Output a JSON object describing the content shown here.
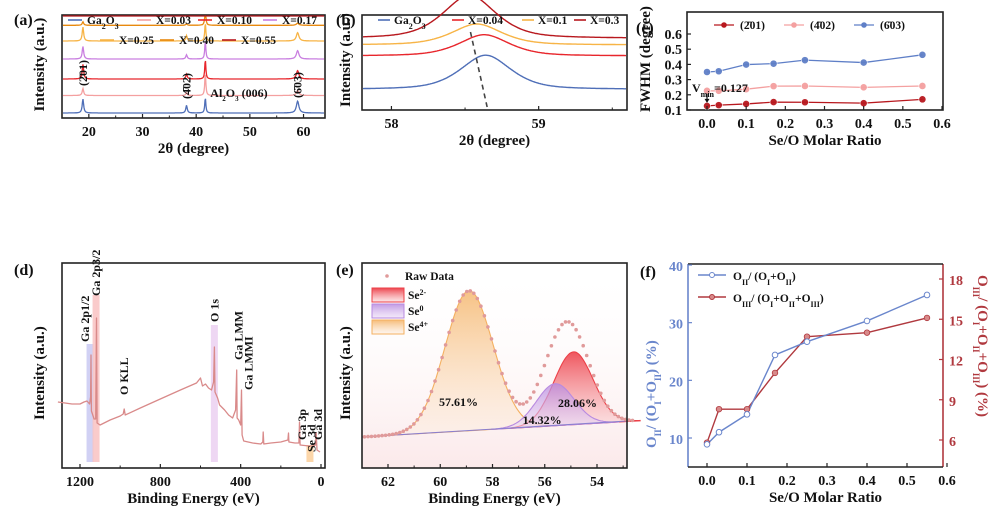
{
  "figure": {
    "panel_labels": [
      "(a)",
      "(b)",
      "(c)",
      "(d)",
      "(e)",
      "(f)"
    ]
  },
  "chart_data": [
    {
      "id": "a",
      "type": "line",
      "title": "",
      "xlabel": "2θ (degree)",
      "ylabel": "Intensity (a.u.)",
      "xlim": [
        15,
        64
      ],
      "xticks": [
        20,
        30,
        40,
        50,
        60
      ],
      "yticks": [],
      "legend_position": "top",
      "series": [
        {
          "name": "Ga₂O₃",
          "name_html": "Ga<tspan baseline-shift='sub' font-size='8'>2</tspan>O<tspan baseline-shift='sub' font-size='8'>3</tspan>",
          "color": "#4f6fb8",
          "offset": 0,
          "peaks": [
            [
              18.9,
              1.0
            ],
            [
              38.2,
              0.55
            ],
            [
              41.7,
              1.1
            ],
            [
              58.9,
              0.85
            ]
          ]
        },
        {
          "name": "X=0.03",
          "color": "#f4a0a0",
          "offset": 1,
          "peaks": [
            [
              18.9,
              0.5
            ],
            [
              38.2,
              0.2
            ],
            [
              41.7,
              1.6
            ],
            [
              58.9,
              0.35
            ]
          ]
        },
        {
          "name": "X=0.10",
          "color": "#e8262c",
          "offset": 2,
          "peaks": [
            [
              18.9,
              1.05
            ],
            [
              38.2,
              0.35
            ],
            [
              41.7,
              1.4
            ],
            [
              58.9,
              0.6
            ]
          ]
        },
        {
          "name": "X=0.17",
          "color": "#c97fe0",
          "offset": 3,
          "peaks": [
            [
              18.9,
              0.9
            ],
            [
              38.2,
              0.3
            ],
            [
              41.7,
              1.3
            ],
            [
              58.9,
              0.6
            ]
          ]
        },
        {
          "name": "X=0.25",
          "color": "#f7b446",
          "offset": 4,
          "peaks": [
            [
              18.9,
              1.0
            ],
            [
              38.2,
              0.4
            ],
            [
              41.7,
              1.3
            ],
            [
              58.9,
              0.6
            ]
          ]
        },
        {
          "name": "X=0.40",
          "color": "#e8890e",
          "offset": 5,
          "peaks": [
            [
              18.9,
              0.25
            ],
            [
              38.2,
              0.1
            ],
            [
              41.7,
              1.2
            ],
            [
              58.9,
              0.15
            ]
          ]
        },
        {
          "name": "X=0.55",
          "color": "#b8181e",
          "offset": 6,
          "peaks": [
            [
              18.9,
              1.2
            ],
            [
              38.2,
              0.6
            ],
            [
              41.7,
              4.5
            ],
            [
              58.9,
              0.9
            ]
          ]
        }
      ],
      "annotations": [
        {
          "text": "(2̄01)",
          "x": 18.9
        },
        {
          "text": "(4̄02)",
          "x": 38.2
        },
        {
          "text": "Al₂O₃ (006)",
          "x": 41.7
        },
        {
          "text": "(6̄03)",
          "x": 58.9
        }
      ]
    },
    {
      "id": "b",
      "type": "line",
      "title": "",
      "xlabel": "2θ (degree)",
      "ylabel": "Intensity (a.u.)",
      "xlim": [
        57.8,
        59.6
      ],
      "xticks": [
        58,
        59
      ],
      "legend_position": "top",
      "series": [
        {
          "name": "Ga₂O₃",
          "color": "#4f6fb8",
          "peak_center": 58.64,
          "baseline_level": 0,
          "height": 1.0
        },
        {
          "name": "X=0.04",
          "color": "#e8262c",
          "peak_center": 58.63,
          "baseline_level": 1.2,
          "height": 0.7
        },
        {
          "name": "X=0.1",
          "color": "#f7b446",
          "peak_center": 58.58,
          "baseline_level": 2.1,
          "height": 0.75
        },
        {
          "name": "X=0.3",
          "color": "#b8181e",
          "peak_center": 58.53,
          "baseline_level": 3.0,
          "height": 1.2
        }
      ],
      "dashed_guide": {
        "from": [
          58.53,
          4.2
        ],
        "to": [
          58.65,
          -0.9
        ]
      }
    },
    {
      "id": "c",
      "type": "line",
      "title": "",
      "xlabel": "Se/O Molar Ratio",
      "ylabel": "FWHM (degree)",
      "xlim": [
        -0.05,
        0.6
      ],
      "ylim": [
        0.1,
        0.65
      ],
      "xticks": [
        0.0,
        0.1,
        0.2,
        0.3,
        0.4,
        0.5,
        0.6
      ],
      "yticks": [
        0.1,
        0.2,
        0.3,
        0.4,
        0.5,
        0.6
      ],
      "legend_position": "top",
      "x": [
        0.0,
        0.03,
        0.1,
        0.17,
        0.25,
        0.4,
        0.55
      ],
      "series": [
        {
          "name": "(2̄01)",
          "color": "#b8181e",
          "values": [
            0.127,
            0.132,
            0.14,
            0.152,
            0.151,
            0.145,
            0.17
          ]
        },
        {
          "name": "(4̄02)",
          "color": "#f4a0a0",
          "values": [
            0.226,
            0.226,
            0.237,
            0.257,
            0.258,
            0.249,
            0.258
          ]
        },
        {
          "name": "(6̄03)",
          "color": "#5f7fc7",
          "values": [
            0.35,
            0.355,
            0.399,
            0.405,
            0.428,
            0.412,
            0.463
          ]
        }
      ],
      "annotation": {
        "text_main": "V",
        "text_sub": "min",
        "text_tail": "=0.127",
        "x": 0.0,
        "y": 0.127
      }
    },
    {
      "id": "d",
      "type": "line",
      "title": "",
      "xlabel": "Binding Energy (eV)",
      "ylabel": "Intensity (a.u.)",
      "xlim": [
        1320,
        -10
      ],
      "xticks": [
        1200,
        800,
        400,
        0
      ],
      "series_color": "#d98a8a",
      "bands": [
        {
          "center": 1143,
          "width": 18,
          "color": "#c8c8f0"
        },
        {
          "center": 1117,
          "width": 22,
          "color": "#f8c0c0"
        },
        {
          "center": 531,
          "width": 22,
          "color": "#ecd0f0"
        },
        {
          "center": 55,
          "width": 26,
          "color": "#fbd5a0"
        }
      ],
      "peak_labels": [
        "Ga 2p1/2",
        "Ga 2p3/2",
        "O KLL",
        "O 1s",
        "Ga LMM",
        "Ga LMMI",
        "Ga 3p",
        "Se 3d",
        "Ga 3d"
      ]
    },
    {
      "id": "e",
      "type": "area",
      "title": "",
      "xlabel": "Binding Energy (eV)",
      "ylabel": "Intensity (a.u.)",
      "xlim": [
        63,
        52.5
      ],
      "xticks": [
        62,
        60,
        58,
        56,
        54
      ],
      "legend_position": "top-left",
      "components": [
        {
          "name": "Se²⁻",
          "label_main": "Se",
          "label_sup": "2-",
          "color": "#ec4048",
          "center": 54.9,
          "height": 0.52,
          "sigma": 0.75,
          "percent": "28.06%"
        },
        {
          "name": "Se⁰",
          "label_main": "Se",
          "label_sup": "0",
          "color": "#b88ae0",
          "center": 55.6,
          "height": 0.3,
          "sigma": 0.72,
          "percent": "14.32%"
        },
        {
          "name": "Se⁴⁺",
          "label_main": "Se",
          "label_sup": "4+",
          "color": "#f4b060",
          "center": 58.9,
          "height": 1.0,
          "sigma": 0.92,
          "percent": "57.61%"
        }
      ],
      "raw_data_label": "Raw Data",
      "raw_data_color": "#e09a9a"
    },
    {
      "id": "f",
      "type": "line",
      "title": "",
      "xlabel": "Se/O Molar Ratio",
      "ylabel_left": "OII/ (OI+OII) (%)",
      "ylabel_right": "OIII/ (OI+OII+OIII) (%)",
      "xlim": [
        -0.05,
        0.6
      ],
      "ylim_left": [
        5,
        40
      ],
      "ylim_right": [
        4.5,
        19
      ],
      "xticks": [
        0.0,
        0.1,
        0.2,
        0.3,
        0.4,
        0.5,
        0.6
      ],
      "yticks_left": [
        10,
        20,
        30,
        40
      ],
      "yticks_right": [
        6,
        9,
        12,
        15,
        18
      ],
      "legend_position": "top-left",
      "x": [
        0.0,
        0.03,
        0.1,
        0.17,
        0.25,
        0.4,
        0.55
      ],
      "series": [
        {
          "name": "OII/ (OI+OII)",
          "axis": "left",
          "color": "#6a86cc",
          "values": [
            8.9,
            11.0,
            14.1,
            24.4,
            26.7,
            30.3,
            34.8
          ]
        },
        {
          "name": "OIII/ (OI+OII+OIII)",
          "axis": "right",
          "color": "#b0393f",
          "values": [
            5.8,
            8.3,
            8.3,
            11.0,
            13.7,
            14.0,
            15.1
          ]
        }
      ]
    }
  ]
}
